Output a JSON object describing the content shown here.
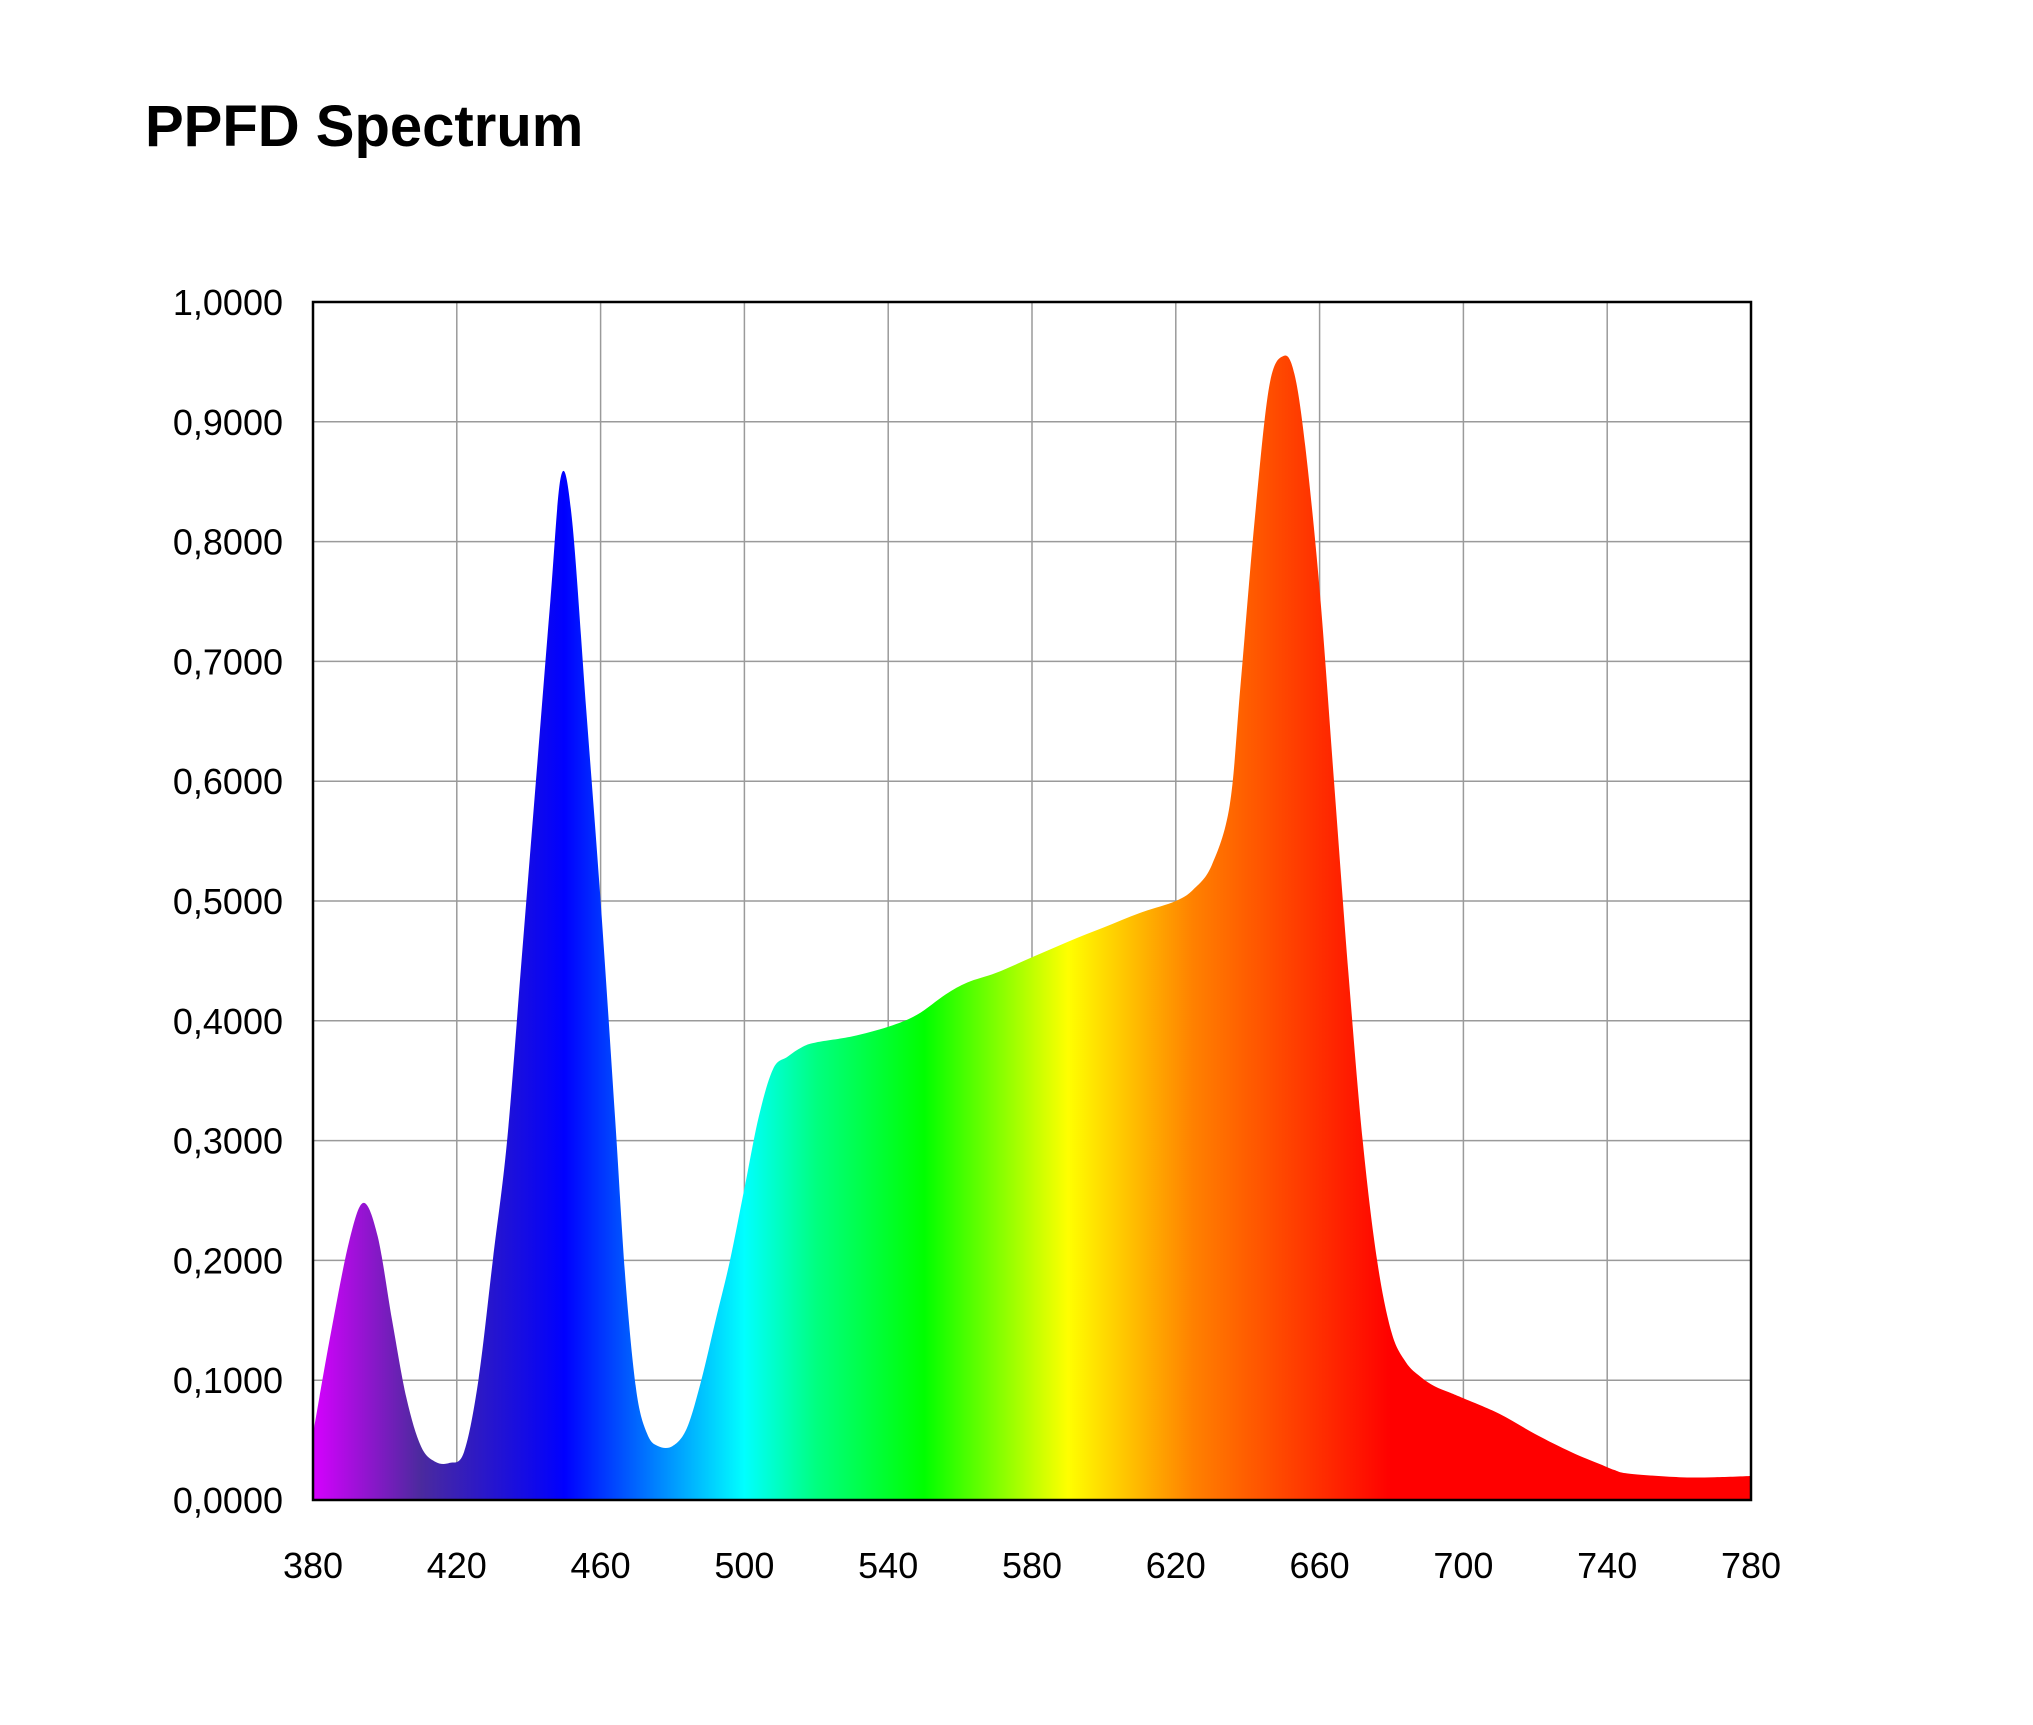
{
  "chart_data": {
    "type": "area",
    "title": "PPFD Spectrum",
    "xlabel": "",
    "ylabel": "",
    "xlim": [
      380,
      780
    ],
    "ylim": [
      0,
      1
    ],
    "grid": true,
    "x_ticks": [
      "380",
      "420",
      "460",
      "500",
      "540",
      "580",
      "620",
      "660",
      "700",
      "740",
      "780"
    ],
    "y_ticks": [
      "0,0000",
      "0,1000",
      "0,2000",
      "0,3000",
      "0,4000",
      "0,5000",
      "0,6000",
      "0,7000",
      "0,8000",
      "0,9000",
      "1,0000"
    ],
    "series": [
      {
        "x": [
          380,
          385,
          390,
          394,
          398,
          402,
          406,
          410,
          414,
          418,
          422,
          426,
          430,
          434,
          438,
          442,
          446,
          449,
          452,
          456,
          460,
          464,
          467,
          470,
          473,
          476,
          480,
          484,
          488,
          492,
          496,
          500,
          504,
          508,
          512,
          516,
          520,
          530,
          540,
          548,
          556,
          562,
          570,
          580,
          590,
          600,
          610,
          620,
          625,
          630,
          635,
          638,
          642,
          646,
          650,
          653,
          656,
          660,
          664,
          668,
          672,
          676,
          680,
          684,
          688,
          692,
          696,
          700,
          710,
          720,
          730,
          738,
          742,
          746,
          760,
          770,
          780
        ],
        "y": [
          0.055,
          0.14,
          0.215,
          0.248,
          0.22,
          0.15,
          0.085,
          0.045,
          0.032,
          0.031,
          0.04,
          0.1,
          0.2,
          0.3,
          0.45,
          0.6,
          0.75,
          0.855,
          0.82,
          0.66,
          0.5,
          0.32,
          0.18,
          0.09,
          0.055,
          0.045,
          0.045,
          0.06,
          0.1,
          0.15,
          0.2,
          0.26,
          0.32,
          0.36,
          0.37,
          0.378,
          0.382,
          0.387,
          0.395,
          0.405,
          0.422,
          0.432,
          0.44,
          0.453,
          0.466,
          0.478,
          0.49,
          0.5,
          0.51,
          0.53,
          0.58,
          0.68,
          0.82,
          0.93,
          0.955,
          0.94,
          0.88,
          0.76,
          0.6,
          0.44,
          0.3,
          0.2,
          0.14,
          0.115,
          0.103,
          0.095,
          0.09,
          0.085,
          0.072,
          0.055,
          0.04,
          0.03,
          0.025,
          0.022,
          0.019,
          0.019,
          0.02
        ]
      }
    ],
    "gradient_colors": [
      "#d600ff",
      "#4b2a9e",
      "#0000ff",
      "#00ffff",
      "#00ff80",
      "#00ff00",
      "#ffff00",
      "#ff8000",
      "#ff0000",
      "#ff0000"
    ],
    "gradient_stops_nm": [
      380,
      410,
      450,
      500,
      520,
      550,
      590,
      625,
      680,
      780
    ]
  }
}
